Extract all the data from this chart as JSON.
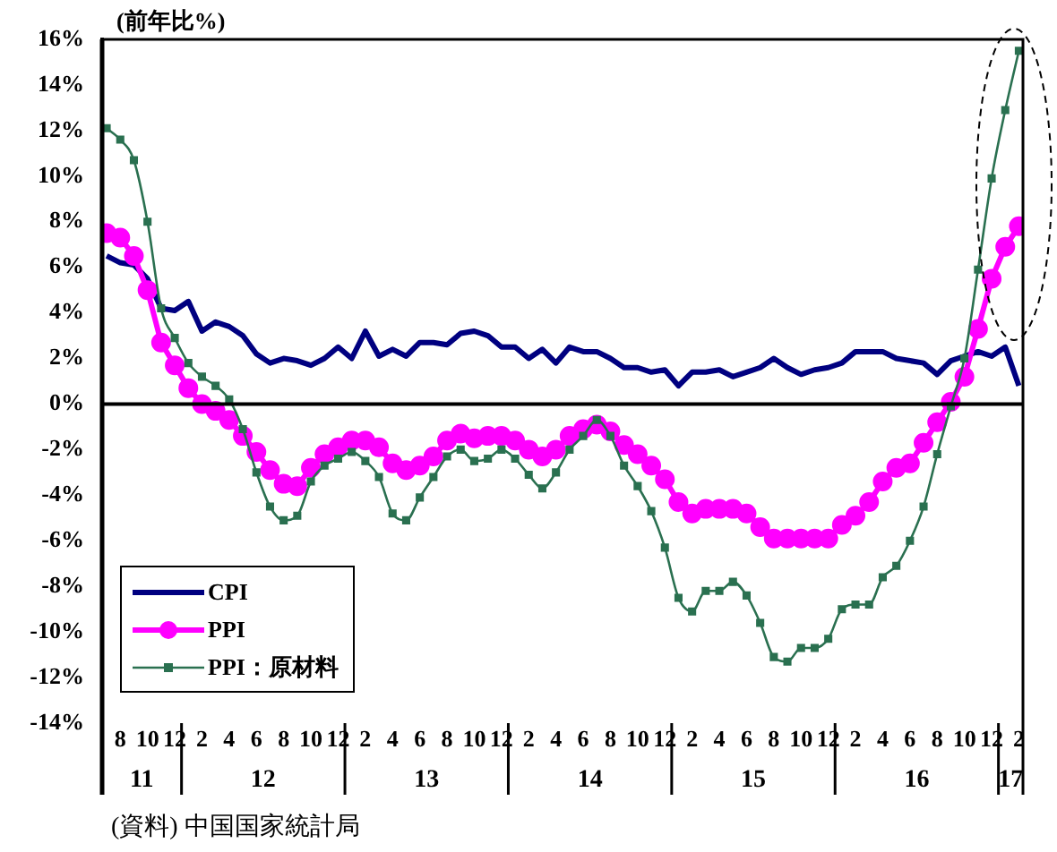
{
  "chart_data": {
    "type": "line",
    "ylabel": "(前年比%)",
    "x": [
      "2011-07",
      "2011-08",
      "2011-09",
      "2011-10",
      "2011-11",
      "2011-12",
      "2012-01",
      "2012-02",
      "2012-03",
      "2012-04",
      "2012-05",
      "2012-06",
      "2012-07",
      "2012-08",
      "2012-09",
      "2012-10",
      "2012-11",
      "2012-12",
      "2013-01",
      "2013-02",
      "2013-03",
      "2013-04",
      "2013-05",
      "2013-06",
      "2013-07",
      "2013-08",
      "2013-09",
      "2013-10",
      "2013-11",
      "2013-12",
      "2014-01",
      "2014-02",
      "2014-03",
      "2014-04",
      "2014-05",
      "2014-06",
      "2014-07",
      "2014-08",
      "2014-09",
      "2014-10",
      "2014-11",
      "2014-12",
      "2015-01",
      "2015-02",
      "2015-03",
      "2015-04",
      "2015-05",
      "2015-06",
      "2015-07",
      "2015-08",
      "2015-09",
      "2015-10",
      "2015-11",
      "2015-12",
      "2016-01",
      "2016-02",
      "2016-03",
      "2016-04",
      "2016-05",
      "2016-06",
      "2016-07",
      "2016-08",
      "2016-09",
      "2016-10",
      "2016-11",
      "2016-12",
      "2017-01",
      "2017-02"
    ],
    "series": [
      {
        "name": "CPI",
        "color": "#000080",
        "marker": "none",
        "values": [
          6.5,
          6.2,
          6.1,
          5.5,
          4.2,
          4.1,
          4.5,
          3.2,
          3.6,
          3.4,
          3.0,
          2.2,
          1.8,
          2.0,
          1.9,
          1.7,
          2.0,
          2.5,
          2.0,
          3.2,
          2.1,
          2.4,
          2.1,
          2.7,
          2.7,
          2.6,
          3.1,
          3.2,
          3.0,
          2.5,
          2.5,
          2.0,
          2.4,
          1.8,
          2.5,
          2.3,
          2.3,
          2.0,
          1.6,
          1.6,
          1.4,
          1.5,
          0.8,
          1.4,
          1.4,
          1.5,
          1.2,
          1.4,
          1.6,
          2.0,
          1.6,
          1.3,
          1.5,
          1.6,
          1.8,
          2.3,
          2.3,
          2.3,
          2.0,
          1.9,
          1.8,
          1.3,
          1.9,
          2.1,
          2.3,
          2.1,
          2.5,
          0.8
        ]
      },
      {
        "name": "PPI",
        "color": "#ff00ff",
        "marker": "circle",
        "values": [
          7.5,
          7.3,
          6.5,
          5.0,
          2.7,
          1.7,
          0.7,
          0.0,
          -0.3,
          -0.7,
          -1.4,
          -2.1,
          -2.9,
          -3.5,
          -3.6,
          -2.8,
          -2.2,
          -1.9,
          -1.6,
          -1.6,
          -1.9,
          -2.6,
          -2.9,
          -2.7,
          -2.3,
          -1.6,
          -1.3,
          -1.5,
          -1.4,
          -1.4,
          -1.6,
          -2.0,
          -2.3,
          -2.0,
          -1.4,
          -1.1,
          -0.9,
          -1.2,
          -1.8,
          -2.2,
          -2.7,
          -3.3,
          -4.3,
          -4.8,
          -4.6,
          -4.6,
          -4.6,
          -4.8,
          -5.4,
          -5.9,
          -5.9,
          -5.9,
          -5.9,
          -5.9,
          -5.3,
          -4.9,
          -4.3,
          -3.4,
          -2.8,
          -2.6,
          -1.7,
          -0.8,
          0.1,
          1.2,
          3.3,
          5.5,
          6.9,
          7.8
        ]
      },
      {
        "name": "PPI：原材料",
        "color": "#2a7050",
        "marker": "square",
        "values": [
          12.1,
          11.6,
          10.7,
          8.0,
          4.2,
          2.9,
          1.8,
          1.2,
          0.8,
          0.2,
          -1.1,
          -3.0,
          -4.5,
          -5.1,
          -4.9,
          -3.4,
          -2.7,
          -2.4,
          -2.1,
          -2.5,
          -3.2,
          -4.8,
          -5.1,
          -4.1,
          -3.2,
          -2.3,
          -2.0,
          -2.5,
          -2.4,
          -2.0,
          -2.4,
          -3.1,
          -3.7,
          -3.0,
          -2.0,
          -1.4,
          -0.7,
          -1.4,
          -2.7,
          -3.6,
          -4.7,
          -6.3,
          -8.5,
          -9.1,
          -8.2,
          -8.2,
          -7.8,
          -8.4,
          -9.6,
          -11.1,
          -11.3,
          -10.7,
          -10.7,
          -10.3,
          -9.0,
          -8.8,
          -8.8,
          -7.6,
          -7.1,
          -6.0,
          -4.5,
          -2.2,
          -0.1,
          2.0,
          5.9,
          9.9,
          12.9,
          15.5
        ]
      }
    ],
    "xlim": [
      "2011-06-21",
      "2017-02-10"
    ],
    "xticks": [
      {
        "value": "2011-08",
        "label": "8"
      },
      {
        "value": "2011-10",
        "label": "10"
      },
      {
        "value": "2011-12",
        "label": "12"
      },
      {
        "value": "2012-02",
        "label": "2"
      },
      {
        "value": "2012-04",
        "label": "4"
      },
      {
        "value": "2012-06",
        "label": "6"
      },
      {
        "value": "2012-08",
        "label": "8"
      },
      {
        "value": "2012-10",
        "label": "10"
      },
      {
        "value": "2012-12",
        "label": "12"
      },
      {
        "value": "2013-02",
        "label": "2"
      },
      {
        "value": "2013-04",
        "label": "4"
      },
      {
        "value": "2013-06",
        "label": "6"
      },
      {
        "value": "2013-08",
        "label": "8"
      },
      {
        "value": "2013-10",
        "label": "10"
      },
      {
        "value": "2013-12",
        "label": "12"
      },
      {
        "value": "2014-02",
        "label": "2"
      },
      {
        "value": "2014-04",
        "label": "4"
      },
      {
        "value": "2014-06",
        "label": "6"
      },
      {
        "value": "2014-08",
        "label": "8"
      },
      {
        "value": "2014-10",
        "label": "10"
      },
      {
        "value": "2014-12",
        "label": "12"
      },
      {
        "value": "2015-02",
        "label": "2"
      },
      {
        "value": "2015-04",
        "label": "4"
      },
      {
        "value": "2015-06",
        "label": "6"
      },
      {
        "value": "2015-08",
        "label": "8"
      },
      {
        "value": "2015-10",
        "label": "10"
      },
      {
        "value": "2015-12",
        "label": "12"
      },
      {
        "value": "2016-02",
        "label": "2"
      },
      {
        "value": "2016-04",
        "label": "4"
      },
      {
        "value": "2016-06",
        "label": "6"
      },
      {
        "value": "2016-08",
        "label": "8"
      },
      {
        "value": "2016-10",
        "label": "10"
      },
      {
        "value": "2016-12",
        "label": "12"
      },
      {
        "value": "2017-02",
        "label": "2"
      }
    ],
    "ylim": [
      -14,
      16
    ],
    "yticks": [
      {
        "value": -14,
        "label": "-14%"
      },
      {
        "value": -12,
        "label": "-12%"
      },
      {
        "value": -10,
        "label": "-10%"
      },
      {
        "value": -8,
        "label": "-8%"
      },
      {
        "value": -6,
        "label": "-6%"
      },
      {
        "value": -4,
        "label": "-4%"
      },
      {
        "value": -2,
        "label": "-2%"
      },
      {
        "value": 0,
        "label": "0%"
      },
      {
        "value": 2,
        "label": "2%"
      },
      {
        "value": 4,
        "label": "4%"
      },
      {
        "value": 6,
        "label": "6%"
      },
      {
        "value": 8,
        "label": "8%"
      },
      {
        "value": 10,
        "label": "10%"
      },
      {
        "value": 12,
        "label": "12%"
      },
      {
        "value": 14,
        "label": "14%"
      },
      {
        "value": 16,
        "label": "16%"
      }
    ],
    "ref_lines": [
      {
        "axis": "y",
        "value": 0,
        "color": "#000000"
      }
    ],
    "grid": false,
    "legend": "bottom left",
    "annotations": [
      "11",
      "12",
      "13",
      "14",
      "15",
      "16",
      "17",
      "(資料) 中国国家統計局"
    ]
  }
}
